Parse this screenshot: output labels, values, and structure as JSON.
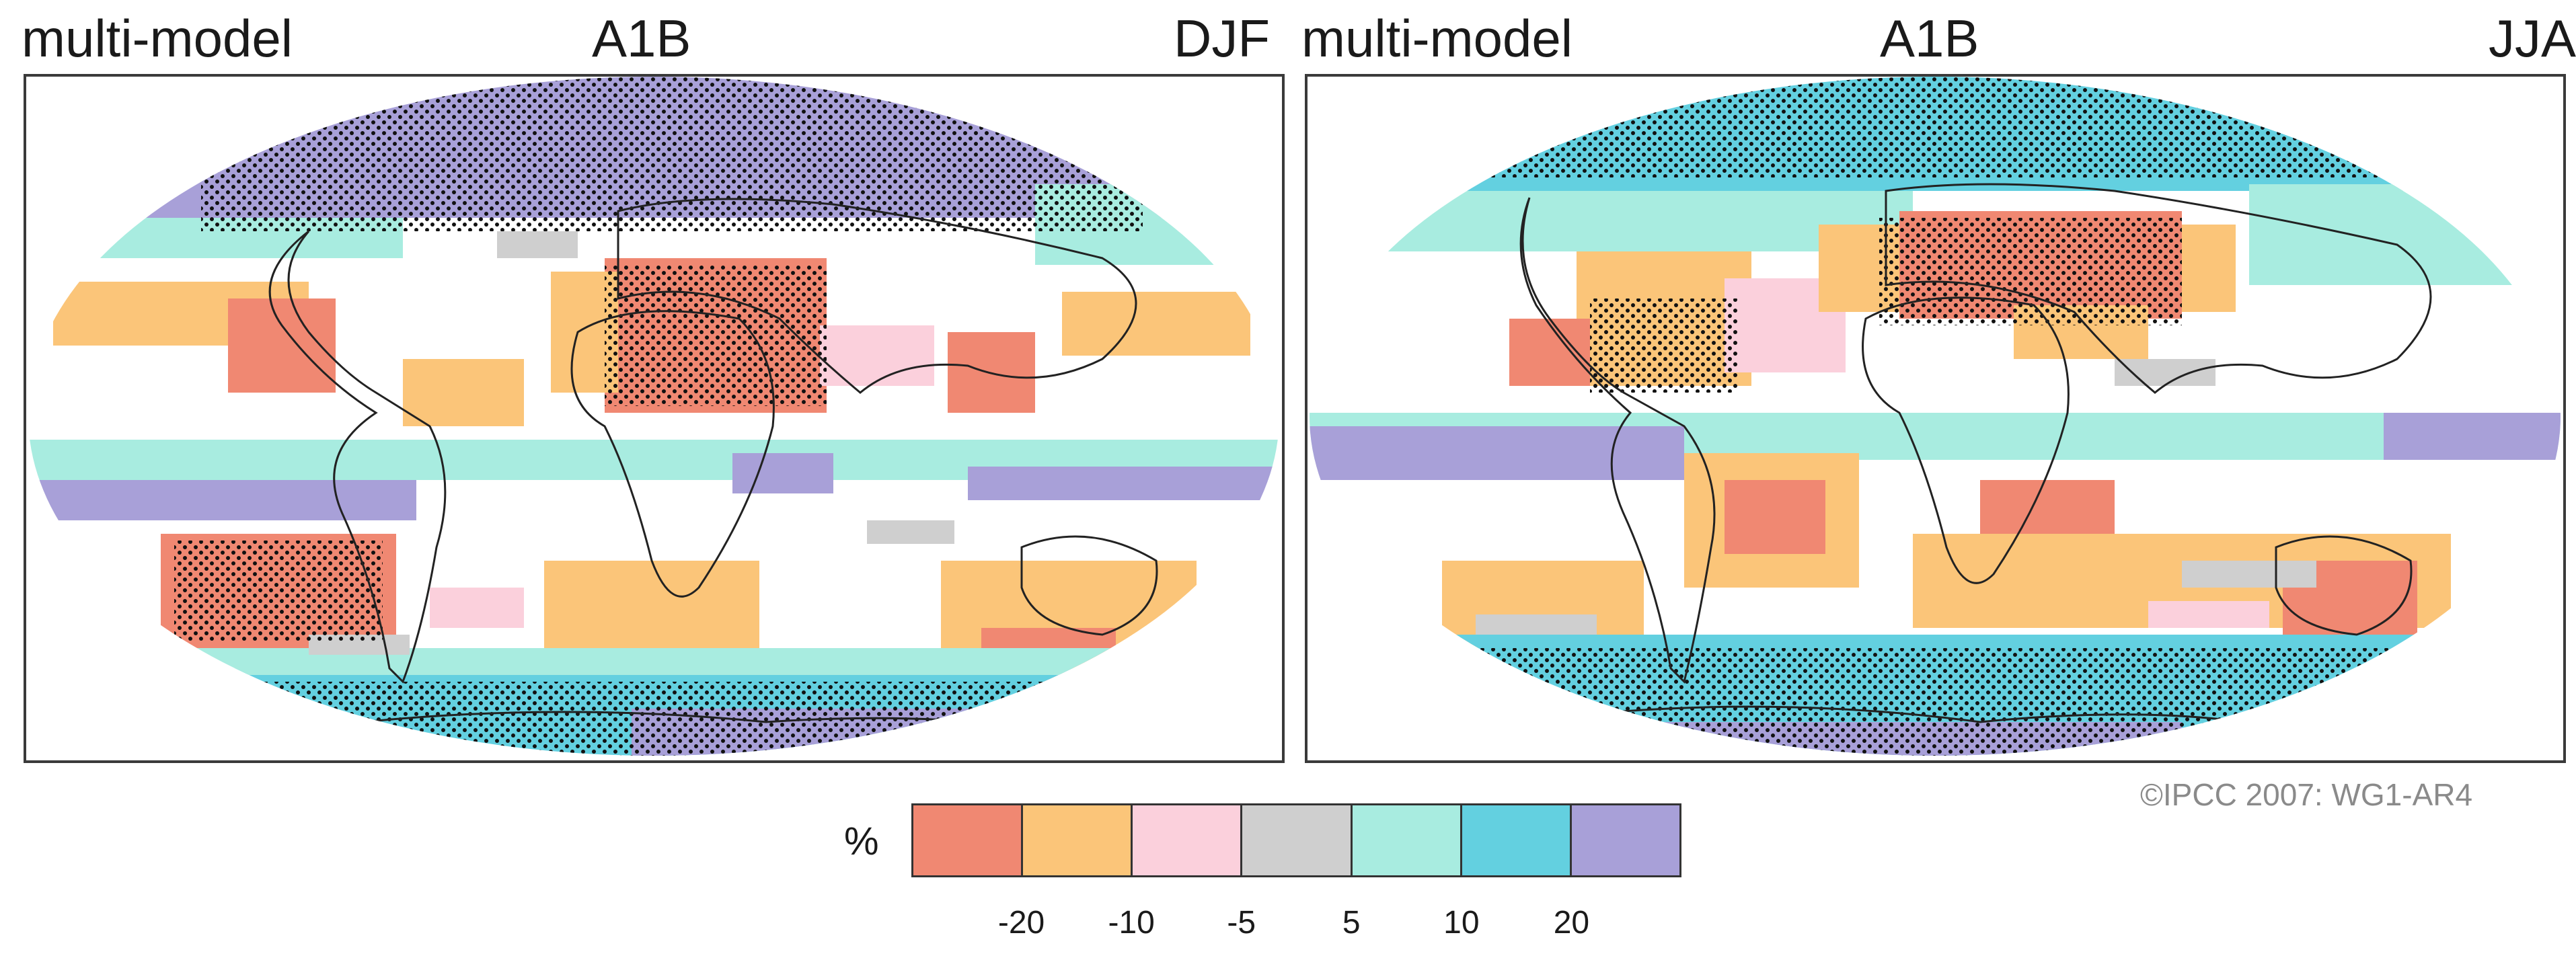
{
  "panels": [
    {
      "left_title": "multi-model",
      "center_title": "A1B",
      "right_title": "DJF"
    },
    {
      "left_title": "multi-model",
      "center_title": "A1B",
      "right_title": "JJA"
    }
  ],
  "legend": {
    "unit": "%",
    "colors": [
      "#f08872",
      "#fbc579",
      "#fbd0dc",
      "#cfcfcf",
      "#a8ece0",
      "#63d0e0",
      "#a8a0d8"
    ],
    "ticks": [
      "-20",
      "-10",
      "-5",
      "5",
      "10",
      "20"
    ]
  },
  "copyright": "©IPCC 2007: WG1-AR4",
  "icons": [
    "world-map-djf",
    "world-map-jja",
    "stippling-dots"
  ]
}
